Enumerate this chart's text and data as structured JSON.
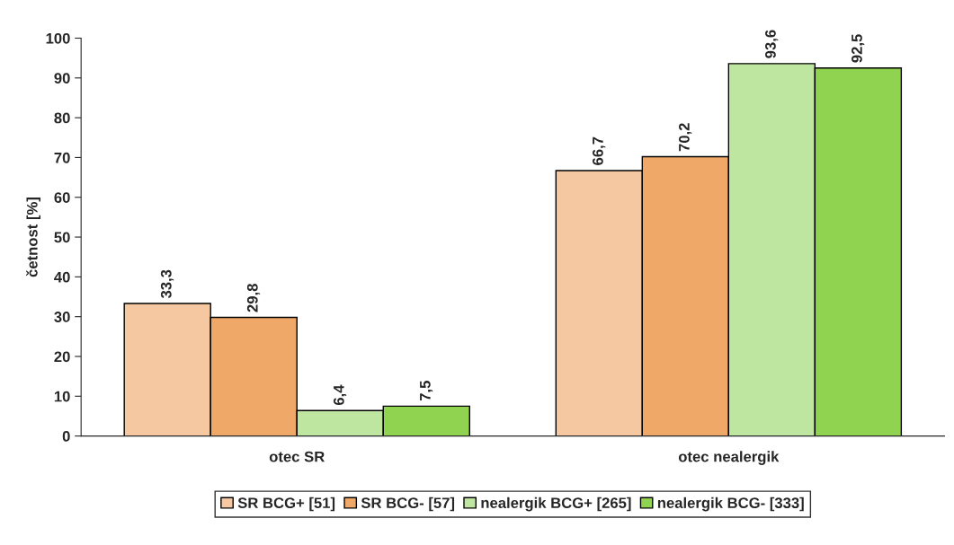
{
  "chart_data": {
    "type": "bar",
    "ylabel": "četnost [%]",
    "categories": [
      "otec SR",
      "otec nealergik"
    ],
    "series": [
      {
        "name": "SR BCG+ [51]",
        "color": "#f6c8a2",
        "values": [
          33.3,
          66.7
        ],
        "value_labels": [
          "33,3",
          "66,7"
        ]
      },
      {
        "name": "SR BCG- [57]",
        "color": "#f0a868",
        "values": [
          29.8,
          70.2
        ],
        "value_labels": [
          "29,8",
          "70,2"
        ]
      },
      {
        "name": "nealergik BCG+ [265]",
        "color": "#bfe6a0",
        "values": [
          6.4,
          93.6
        ],
        "value_labels": [
          "6,4",
          "93,6"
        ]
      },
      {
        "name": "nealergik BCG- [333]",
        "color": "#8fd350",
        "values": [
          7.5,
          92.5
        ],
        "value_labels": [
          "7,5",
          "92,5"
        ]
      }
    ],
    "ylim": [
      0,
      100
    ],
    "yticks": [
      0,
      10,
      20,
      30,
      40,
      50,
      60,
      70,
      80,
      90,
      100
    ],
    "grid": false,
    "legend": "bottom"
  }
}
